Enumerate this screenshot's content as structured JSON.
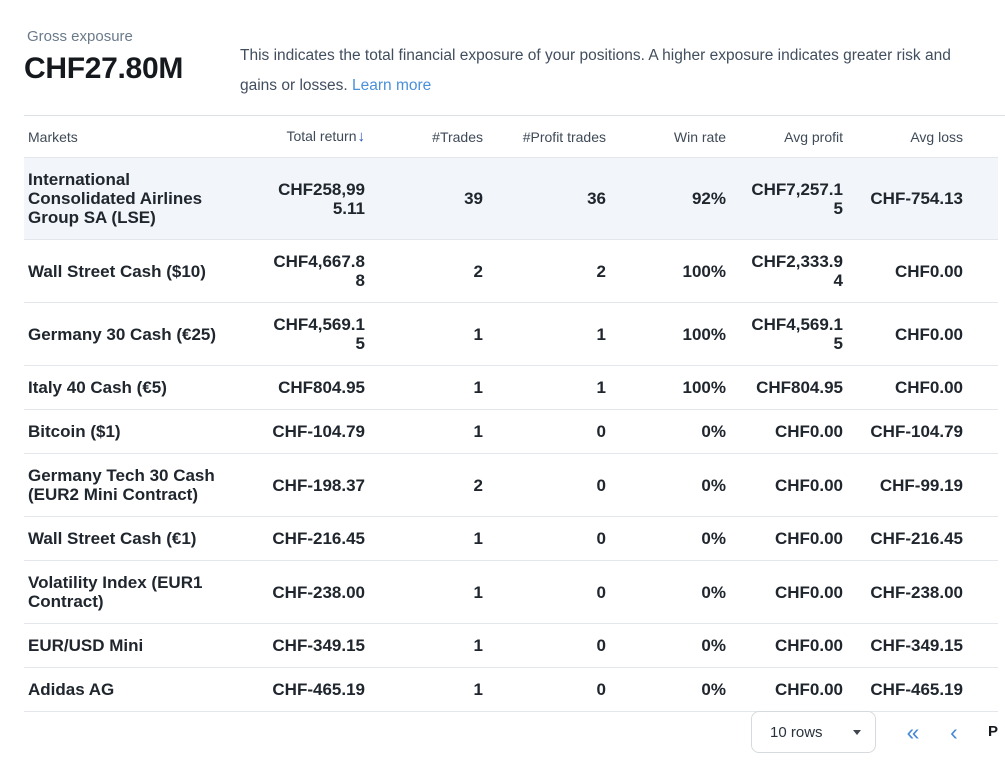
{
  "palette": {
    "green": "#1e8139",
    "red": "#bf2533",
    "link_blue": "#4a90d9",
    "arrow_blue": "#2450bd",
    "chevron_blue": "#4788d8",
    "row_highlight": "#f2f5f9"
  },
  "header": {
    "label": "Gross exposure",
    "value": "CHF27.80M",
    "description_line1": "This indicates the total financial exposure of your positions. A higher exposure indicates greater risk and",
    "description_line2": "gains or losses.",
    "learn_more": "Learn more"
  },
  "table": {
    "columns": [
      {
        "label": "Markets",
        "align": "left"
      },
      {
        "label": "Total return",
        "align": "right",
        "sorted": "desc"
      },
      {
        "label": "#Trades",
        "align": "right"
      },
      {
        "label": "#Profit trades",
        "align": "right"
      },
      {
        "label": "Win rate",
        "align": "right"
      },
      {
        "label": "Avg profit",
        "align": "right"
      },
      {
        "label": "Avg loss",
        "align": "right"
      }
    ],
    "sort_icon": "↓",
    "rows": [
      {
        "market": "International Consolidated Airlines Group SA (LSE)",
        "total_return": "CHF258,995.11",
        "total_return_sign": "pos",
        "trades": "39",
        "profit_trades": "36",
        "win_rate": "92%",
        "avg_profit": "CHF7,257.15",
        "avg_profit_sign": "pos",
        "avg_loss": "CHF-754.13",
        "avg_loss_sign": "neg",
        "highlighted": true
      },
      {
        "market": "Wall Street Cash ($10)",
        "total_return": "CHF4,667.88",
        "total_return_sign": "pos",
        "trades": "2",
        "profit_trades": "2",
        "win_rate": "100%",
        "avg_profit": "CHF2,333.94",
        "avg_profit_sign": "pos",
        "avg_loss": "CHF0.00",
        "avg_loss_sign": "zero",
        "highlighted": false
      },
      {
        "market": "Germany 30 Cash (€25)",
        "total_return": "CHF4,569.15",
        "total_return_sign": "pos",
        "trades": "1",
        "profit_trades": "1",
        "win_rate": "100%",
        "avg_profit": "CHF4,569.15",
        "avg_profit_sign": "pos",
        "avg_loss": "CHF0.00",
        "avg_loss_sign": "zero",
        "highlighted": false
      },
      {
        "market": "Italy 40 Cash (€5)",
        "total_return": "CHF804.95",
        "total_return_sign": "pos",
        "trades": "1",
        "profit_trades": "1",
        "win_rate": "100%",
        "avg_profit": "CHF804.95",
        "avg_profit_sign": "pos",
        "avg_loss": "CHF0.00",
        "avg_loss_sign": "zero",
        "highlighted": false
      },
      {
        "market": "Bitcoin ($1)",
        "total_return": "CHF-104.79",
        "total_return_sign": "neg",
        "trades": "1",
        "profit_trades": "0",
        "win_rate": "0%",
        "avg_profit": "CHF0.00",
        "avg_profit_sign": "zero",
        "avg_loss": "CHF-104.79",
        "avg_loss_sign": "neg",
        "highlighted": false
      },
      {
        "market": "Germany Tech 30 Cash (EUR2 Mini Contract)",
        "total_return": "CHF-198.37",
        "total_return_sign": "neg",
        "trades": "2",
        "profit_trades": "0",
        "win_rate": "0%",
        "avg_profit": "CHF0.00",
        "avg_profit_sign": "zero",
        "avg_loss": "CHF-99.19",
        "avg_loss_sign": "neg",
        "highlighted": false
      },
      {
        "market": "Wall Street Cash (€1)",
        "total_return": "CHF-216.45",
        "total_return_sign": "neg",
        "trades": "1",
        "profit_trades": "0",
        "win_rate": "0%",
        "avg_profit": "CHF0.00",
        "avg_profit_sign": "zero",
        "avg_loss": "CHF-216.45",
        "avg_loss_sign": "neg",
        "highlighted": false
      },
      {
        "market": "Volatility Index (EUR1 Contract)",
        "total_return": "CHF-238.00",
        "total_return_sign": "neg",
        "trades": "1",
        "profit_trades": "0",
        "win_rate": "0%",
        "avg_profit": "CHF0.00",
        "avg_profit_sign": "zero",
        "avg_loss": "CHF-238.00",
        "avg_loss_sign": "neg",
        "highlighted": false
      },
      {
        "market": "EUR/USD Mini",
        "total_return": "CHF-349.15",
        "total_return_sign": "neg",
        "trades": "1",
        "profit_trades": "0",
        "win_rate": "0%",
        "avg_profit": "CHF0.00",
        "avg_profit_sign": "zero",
        "avg_loss": "CHF-349.15",
        "avg_loss_sign": "neg",
        "highlighted": false
      },
      {
        "market": "Adidas AG",
        "total_return": "CHF-465.19",
        "total_return_sign": "neg",
        "trades": "1",
        "profit_trades": "0",
        "win_rate": "0%",
        "avg_profit": "CHF0.00",
        "avg_profit_sign": "zero",
        "avg_loss": "CHF-465.19",
        "avg_loss_sign": "neg",
        "highlighted": false
      }
    ]
  },
  "pagination": {
    "rows_select": "10 rows",
    "first_page_icon": "«",
    "prev_page_icon": "‹",
    "page_label": "P"
  }
}
